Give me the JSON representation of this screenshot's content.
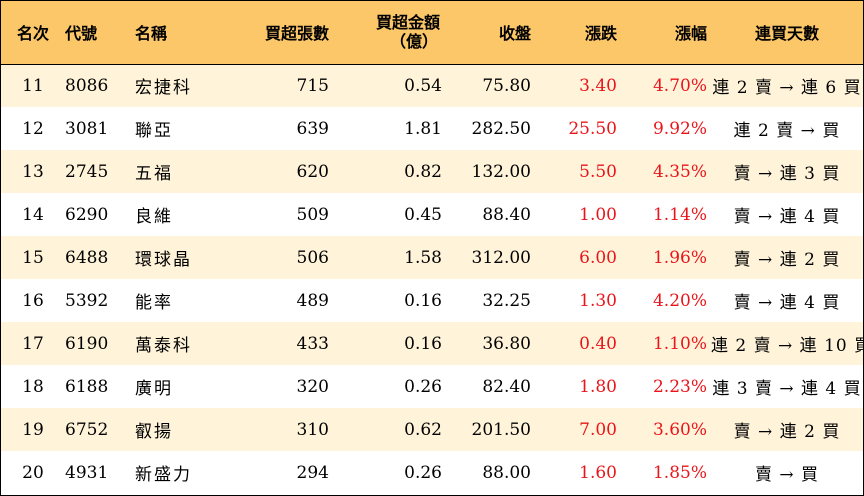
{
  "headers": {
    "rank": "名次",
    "code": "代號",
    "name": "名稱",
    "net_buy_lots": "買超張數",
    "net_buy_amount_line1": "買超金額",
    "net_buy_amount_line2": "（億）",
    "close": "收盤",
    "change": "漲跌",
    "change_pct": "漲幅",
    "streak": "連買天數"
  },
  "rows": [
    {
      "rank": "11",
      "code": "8086",
      "name": "宏捷科",
      "lots": "715",
      "amount": "0.54",
      "close": "75.80",
      "change": "3.40",
      "pct": "4.70%",
      "streak": "連 2 賣 → 連 6 買"
    },
    {
      "rank": "12",
      "code": "3081",
      "name": "聯亞",
      "lots": "639",
      "amount": "1.81",
      "close": "282.50",
      "change": "25.50",
      "pct": "9.92%",
      "streak": "連 2 賣 → 買"
    },
    {
      "rank": "13",
      "code": "2745",
      "name": "五福",
      "lots": "620",
      "amount": "0.82",
      "close": "132.00",
      "change": "5.50",
      "pct": "4.35%",
      "streak": "賣 → 連 3 買"
    },
    {
      "rank": "14",
      "code": "6290",
      "name": "良維",
      "lots": "509",
      "amount": "0.45",
      "close": "88.40",
      "change": "1.00",
      "pct": "1.14%",
      "streak": "賣 → 連 4 買"
    },
    {
      "rank": "15",
      "code": "6488",
      "name": "環球晶",
      "lots": "506",
      "amount": "1.58",
      "close": "312.00",
      "change": "6.00",
      "pct": "1.96%",
      "streak": "賣 → 連 2 買"
    },
    {
      "rank": "16",
      "code": "5392",
      "name": "能率",
      "lots": "489",
      "amount": "0.16",
      "close": "32.25",
      "change": "1.30",
      "pct": "4.20%",
      "streak": "賣 → 連 4 買"
    },
    {
      "rank": "17",
      "code": "6190",
      "name": "萬泰科",
      "lots": "433",
      "amount": "0.16",
      "close": "36.80",
      "change": "0.40",
      "pct": "1.10%",
      "streak": "連 2 賣 → 連 10 買"
    },
    {
      "rank": "18",
      "code": "6188",
      "name": "廣明",
      "lots": "320",
      "amount": "0.26",
      "close": "82.40",
      "change": "1.80",
      "pct": "2.23%",
      "streak": "連 3 賣 → 連 4 買"
    },
    {
      "rank": "19",
      "code": "6752",
      "name": "叡揚",
      "lots": "310",
      "amount": "0.62",
      "close": "201.50",
      "change": "7.00",
      "pct": "3.60%",
      "streak": "賣 → 連 2 買"
    },
    {
      "rank": "20",
      "code": "4931",
      "name": "新盛力",
      "lots": "294",
      "amount": "0.26",
      "close": "88.00",
      "change": "1.60",
      "pct": "1.85%",
      "streak": "賣 → 買"
    }
  ],
  "colors": {
    "header_bg": "#fbc769",
    "stripe_bg": "#fff4da",
    "up_red": "#e8151b"
  }
}
